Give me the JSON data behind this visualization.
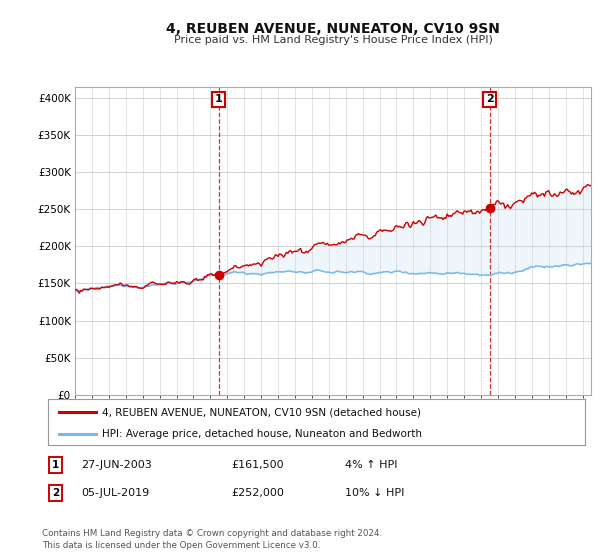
{
  "title": "4, REUBEN AVENUE, NUNEATON, CV10 9SN",
  "subtitle": "Price paid vs. HM Land Registry's House Price Index (HPI)",
  "ylabel_ticks": [
    "£0",
    "£50K",
    "£100K",
    "£150K",
    "£200K",
    "£250K",
    "£300K",
    "£350K",
    "£400K"
  ],
  "ytick_vals": [
    0,
    50000,
    100000,
    150000,
    200000,
    250000,
    300000,
    350000,
    400000
  ],
  "ylim": [
    0,
    415000
  ],
  "xlim_start": 1995.0,
  "xlim_end": 2025.5,
  "hpi_color": "#7ab8e8",
  "hpi_fill_color": "#d0e8f8",
  "price_color": "#cc0000",
  "marker1_date": 2003.49,
  "marker1_value": 161500,
  "marker2_date": 2019.51,
  "marker2_value": 252000,
  "legend_line1": "4, REUBEN AVENUE, NUNEATON, CV10 9SN (detached house)",
  "legend_line2": "HPI: Average price, detached house, Nuneaton and Bedworth",
  "table_row1": [
    "1",
    "27-JUN-2003",
    "£161,500",
    "4% ↑ HPI"
  ],
  "table_row2": [
    "2",
    "05-JUL-2019",
    "£252,000",
    "10% ↓ HPI"
  ],
  "footnote": "Contains HM Land Registry data © Crown copyright and database right 2024.\nThis data is licensed under the Open Government Licence v3.0.",
  "bg_color": "#ffffff",
  "grid_color": "#cccccc"
}
